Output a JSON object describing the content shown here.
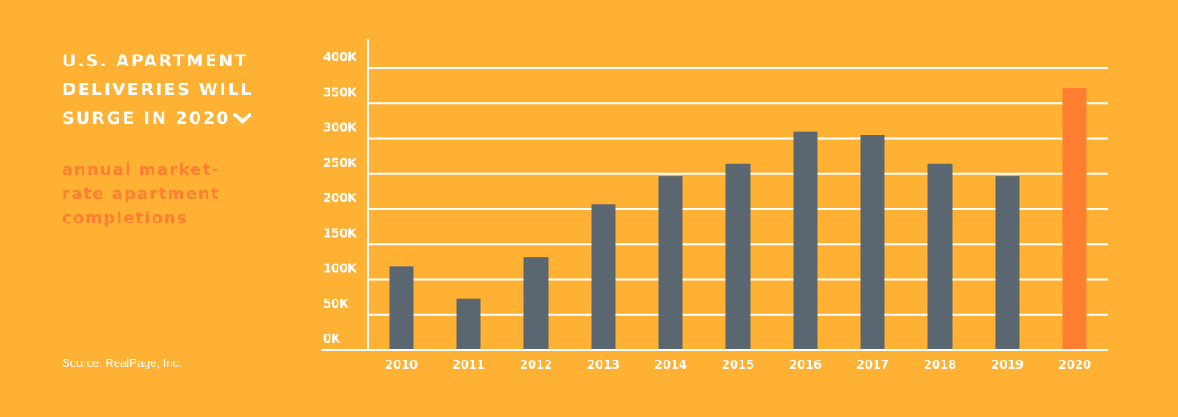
{
  "title_lines": [
    "U.S. APARTMENT",
    "DELIVERIES WILL",
    "SURGE IN 2020"
  ],
  "title_icon": "chevron-down-icon",
  "subtitle_lines": [
    "annual market-",
    "rate apartment",
    "completions"
  ],
  "source": "Source: RealPage, Inc.",
  "colors": {
    "background": "#FFB134",
    "bar": "#5A6670",
    "highlight_bar": "#FF7F32",
    "grid": "#FFFFFF",
    "subtitle": "#FF7F32"
  },
  "chart_data": {
    "type": "bar",
    "categories": [
      "2010",
      "2011",
      "2012",
      "2013",
      "2014",
      "2015",
      "2016",
      "2017",
      "2018",
      "2019",
      "2020"
    ],
    "values": [
      118000,
      73000,
      131000,
      206000,
      247000,
      264000,
      310000,
      305000,
      264000,
      247000,
      372000
    ],
    "highlight": [
      "2020"
    ],
    "ylim": [
      0,
      400000
    ],
    "yticks": [
      0,
      50000,
      100000,
      150000,
      200000,
      250000,
      300000,
      350000,
      400000
    ],
    "ytick_labels": [
      "0K",
      "50K",
      "100K",
      "150K",
      "200K",
      "250K",
      "300K",
      "350K",
      "400K"
    ],
    "grid": true,
    "xlabel": "",
    "ylabel": ""
  }
}
